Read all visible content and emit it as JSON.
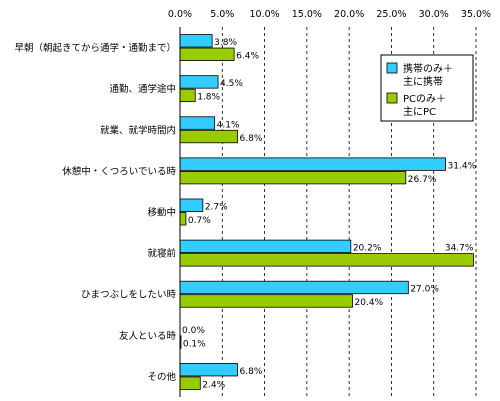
{
  "chart_data": {
    "type": "bar",
    "orientation": "horizontal",
    "title": "",
    "xlabel": "",
    "ylabel": "",
    "xlim": [
      0,
      35
    ],
    "x_ticks": [
      0,
      5,
      10,
      15,
      20,
      25,
      30,
      35
    ],
    "tick_suffix": "%",
    "grid": "vertical-dashed",
    "legend_position": "top-right",
    "categories": [
      "早朝（朝起きてから通学・通勤まで）",
      "通勤、通学途中",
      "就業、就学時間内",
      "休憩中・くつろいでいる時",
      "移動中",
      "就寝前",
      "ひまつぶしをしたい時",
      "友人といる時",
      "その他"
    ],
    "series": [
      {
        "name": "携帯のみ＋主に携帯",
        "legend_lines": [
          "携帯のみ＋",
          "主に携帯"
        ],
        "color": "#33ccff",
        "values": [
          3.8,
          4.5,
          4.1,
          31.4,
          2.7,
          20.2,
          27.0,
          0.0,
          6.8
        ]
      },
      {
        "name": "PCのみ＋主にPC",
        "legend_lines": [
          "PCのみ＋",
          "主にPC"
        ],
        "color": "#99cc00",
        "values": [
          6.4,
          1.8,
          6.8,
          26.7,
          0.7,
          34.7,
          20.4,
          0.1,
          2.4
        ]
      }
    ]
  }
}
